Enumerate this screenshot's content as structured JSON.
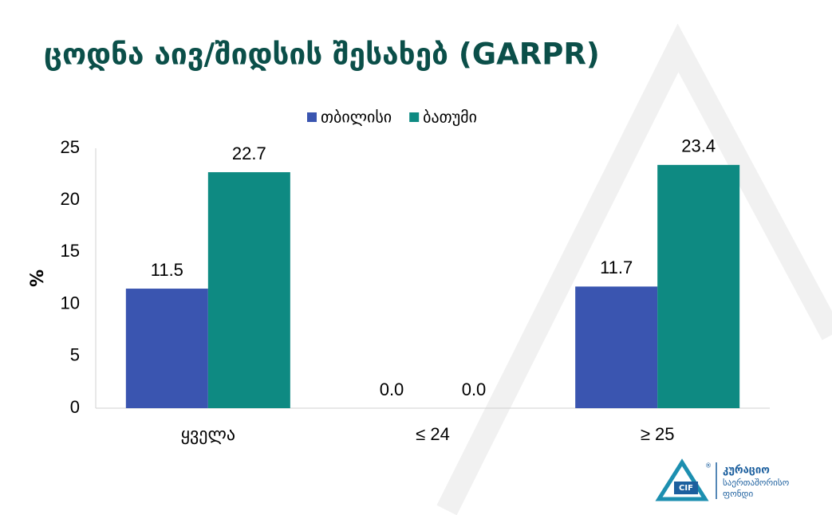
{
  "chart_data": {
    "type": "bar",
    "title": "ცოდნა აივ/შიდსის შესახებ (GARPR)",
    "y_label": "%",
    "categories": [
      "ყველა",
      "≤ 24",
      "≥ 25"
    ],
    "series": [
      {
        "name": "თბილისი",
        "color": "#3a55b0",
        "values": [
          11.5,
          0,
          11.7
        ],
        "value_labels": [
          "11.5",
          "0.0",
          "11.7"
        ]
      },
      {
        "name": "ბათუმი",
        "color": "#0e8a82",
        "values": [
          22.7,
          0,
          23.4
        ],
        "value_labels": [
          "22.7",
          "0.0",
          "23.4"
        ]
      }
    ],
    "ylim": [
      0,
      25
    ],
    "yticks": [
      0,
      5,
      10,
      15,
      20,
      25
    ],
    "grid": false,
    "legend": "top"
  },
  "logo": {
    "abbr": "CIF",
    "registered": "®",
    "name": "კურაციო",
    "subtitle_1": "საერთაშორისო",
    "subtitle_2": "ფონდი"
  }
}
